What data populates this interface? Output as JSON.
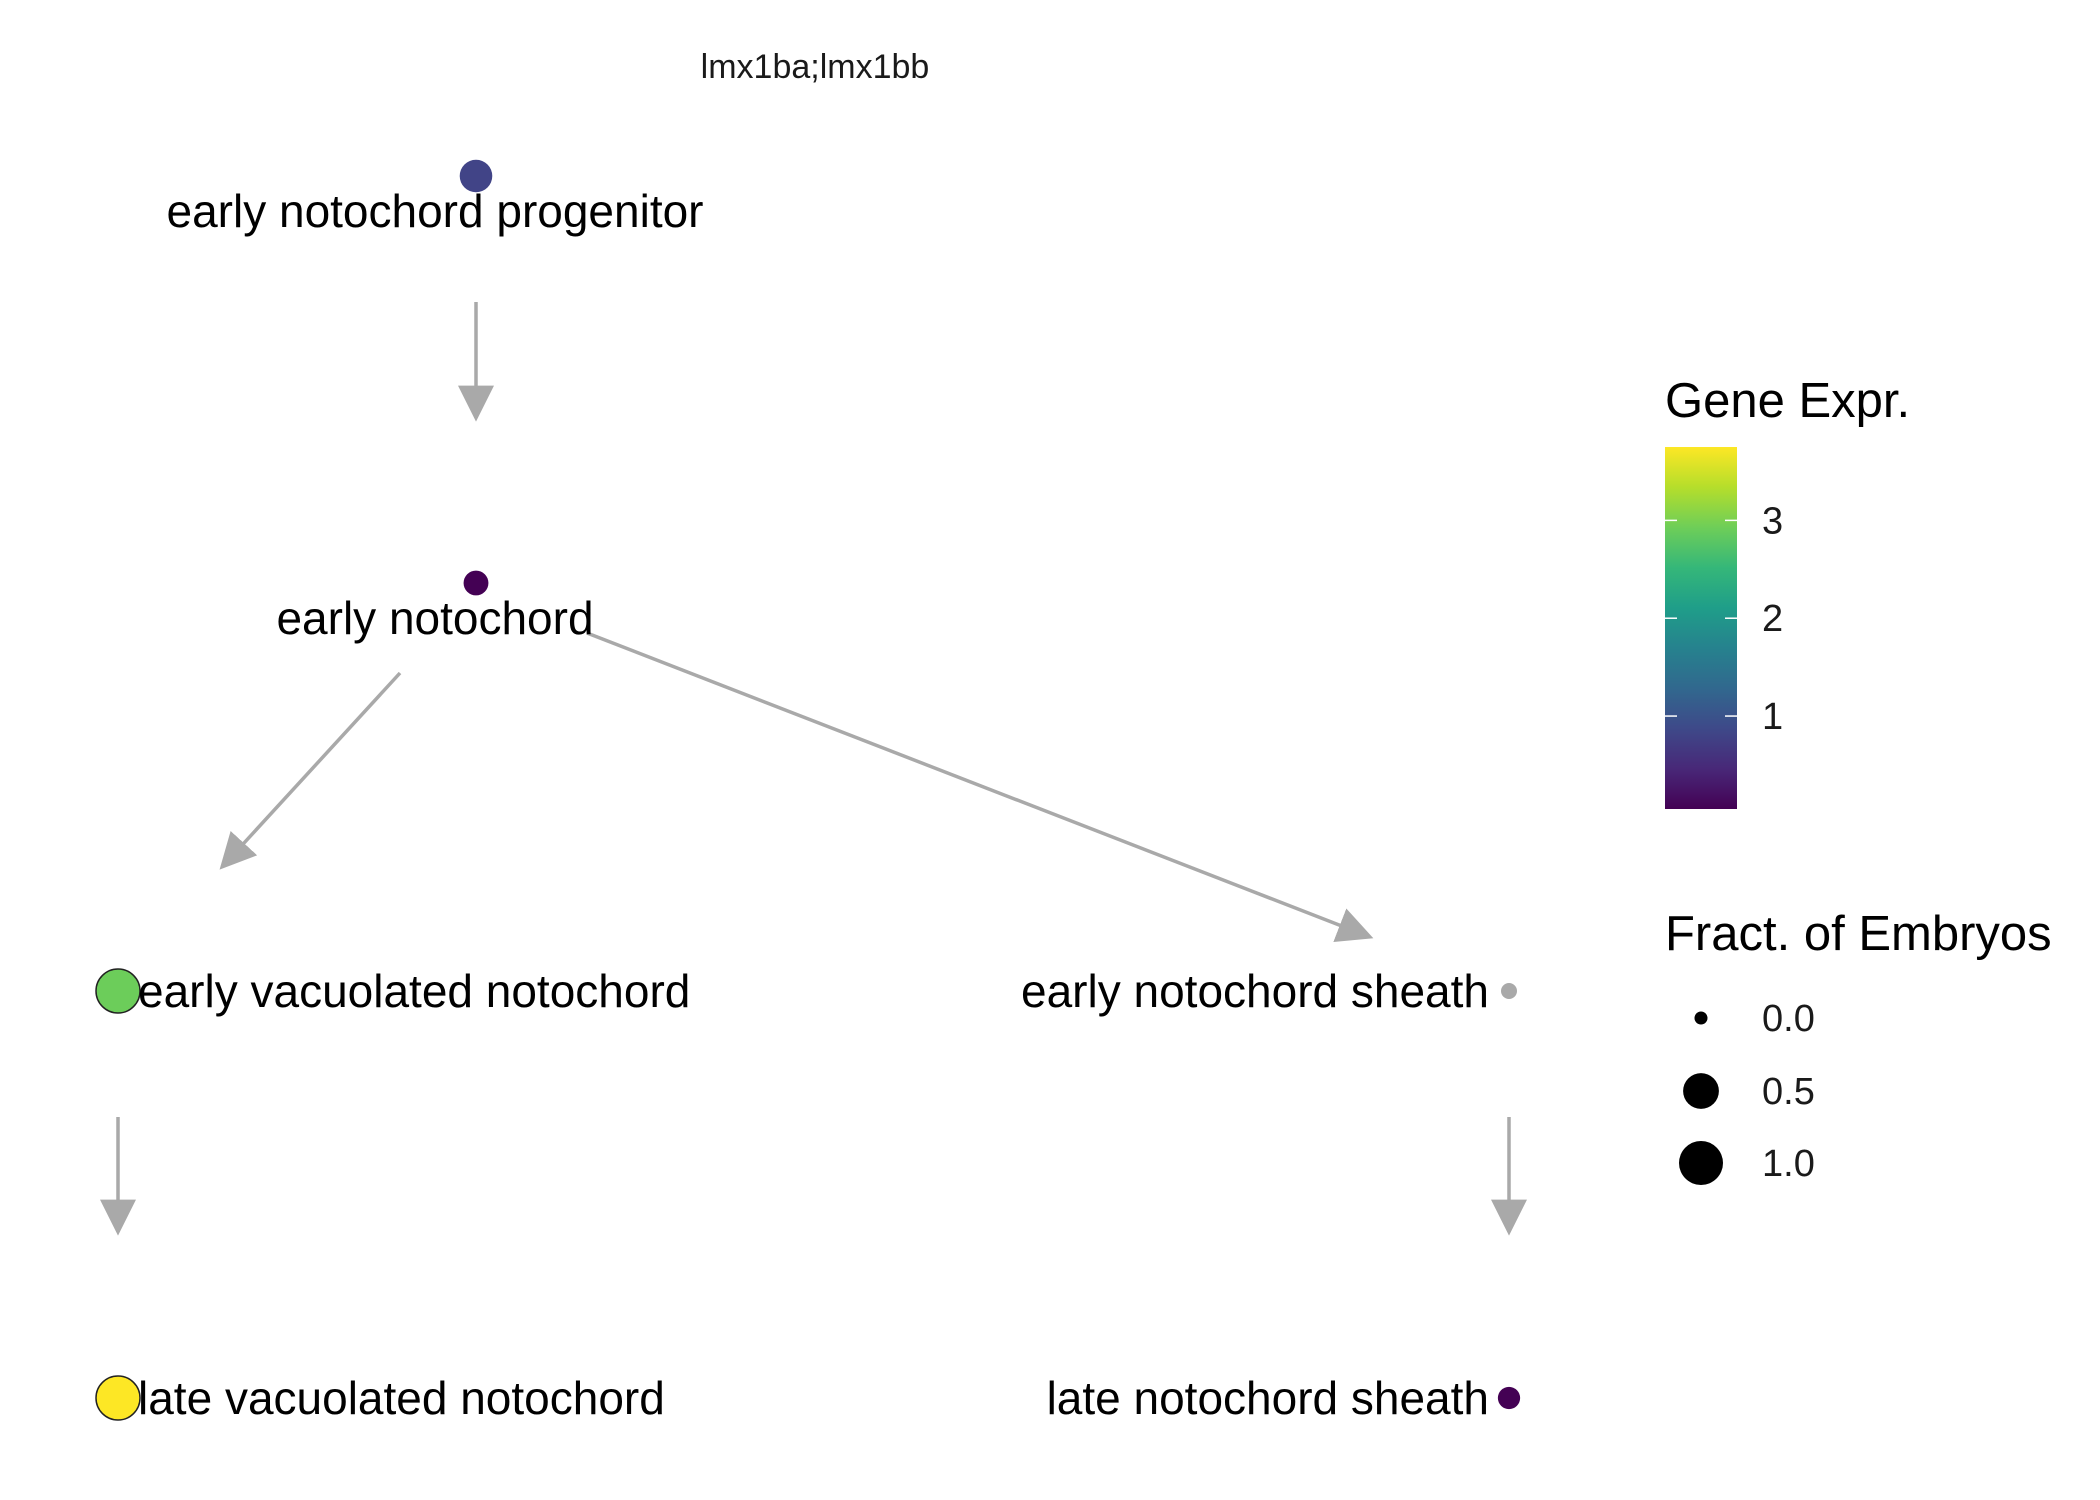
{
  "chart_data": {
    "type": "lineage-tree",
    "title": "lmx1ba;lmx1bb",
    "nodes": [
      {
        "id": "ENP",
        "label": "early notochord progenitor",
        "expr": 0.9,
        "fraction": 0.35,
        "color": "#414487"
      },
      {
        "id": "EN",
        "label": "early notochord",
        "expr": 0.05,
        "fraction": 0.1,
        "color": "#440154"
      },
      {
        "id": "EVN",
        "label": "early vacuolated notochord",
        "expr": 2.85,
        "fraction": 1.0,
        "color": "#6ccd5a",
        "outlined": true
      },
      {
        "id": "ENS",
        "label": "early notochord sheath",
        "expr": null,
        "fraction": 0.0,
        "color": "#a9a9a9"
      },
      {
        "id": "LVN",
        "label": "late vacuolated notochord",
        "expr": 3.75,
        "fraction": 1.0,
        "color": "#fde725",
        "outlined": true
      },
      {
        "id": "LNS",
        "label": "late notochord sheath",
        "expr": 0.05,
        "fraction": 0.05,
        "color": "#440154"
      }
    ],
    "edges": [
      {
        "from": "ENP",
        "to": "EN"
      },
      {
        "from": "EN",
        "to": "EVN"
      },
      {
        "from": "EN",
        "to": "ENS"
      },
      {
        "from": "EVN",
        "to": "LVN"
      },
      {
        "from": "ENS",
        "to": "LNS"
      }
    ],
    "color_legend": {
      "title": "Gene Expr.",
      "ticks": [
        "1",
        "2",
        "3"
      ],
      "tick_values": [
        1,
        2,
        3
      ],
      "range": [
        0.05,
        3.75
      ],
      "colormap": [
        "#440154",
        "#482878",
        "#3e4989",
        "#31688e",
        "#26828e",
        "#1f9e89",
        "#35b779",
        "#6ece58",
        "#b5de2b",
        "#fde725"
      ]
    },
    "size_legend": {
      "title": "Fract. of Embryos",
      "entries": [
        "0.0",
        "0.5",
        "1.0"
      ],
      "values": [
        0.0,
        0.5,
        1.0
      ]
    },
    "edge_color": "#a9a9a9"
  }
}
